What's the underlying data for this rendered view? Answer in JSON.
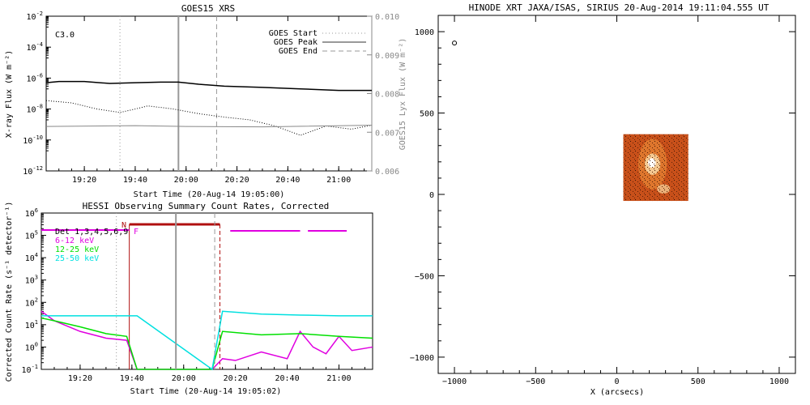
{
  "goes": {
    "title": "GOES15 XRS",
    "flare_class": "C3.0",
    "xlabel": "Start Time (20-Aug-14 19:05:00)",
    "ylabel_left": "X-ray Flux (W m⁻²)",
    "ylabel_right": "GOES15 Lyx Flux (W m⁻²)",
    "legend": [
      {
        "label": "GOES Start",
        "style": "dotted"
      },
      {
        "label": "GOES Peak",
        "style": "solid"
      },
      {
        "label": "GOES End",
        "style": "dashed"
      }
    ],
    "left_ticks": [
      {
        "exp": "-2",
        "v": -2
      },
      {
        "exp": "-4",
        "v": -4
      },
      {
        "exp": "-6",
        "v": -6
      },
      {
        "exp": "-8",
        "v": -8
      },
      {
        "exp": "-10",
        "v": -10
      },
      {
        "exp": "-12",
        "v": -12
      }
    ],
    "right_ticks": [
      "0.010",
      "0.009",
      "0.008",
      "0.007",
      "0.006"
    ],
    "x_ticks": [
      "19:20",
      "19:40",
      "20:00",
      "20:20",
      "20:40",
      "21:00"
    ]
  },
  "hessi": {
    "title": "HESSI Observing Summary Count Rates, Corrected",
    "xlabel": "Start Time (20-Aug-14 19:05:02)",
    "ylabel": "Corrected Count Rate (s⁻¹ detector⁻¹)",
    "legend": [
      {
        "label": "Det 1,3,4,5,6,9",
        "color": "#000000"
      },
      {
        "label": "6-12 keV",
        "color": "#e000e0"
      },
      {
        "label": "12-25 keV",
        "color": "#00e000"
      },
      {
        "label": "25-50 keV",
        "color": "#00e0e0"
      }
    ],
    "markers": {
      "night": "N",
      "flare": "F"
    },
    "y_ticks": [
      {
        "exp": "6",
        "v": 6
      },
      {
        "exp": "5",
        "v": 5
      },
      {
        "exp": "4",
        "v": 4
      },
      {
        "exp": "3",
        "v": 3
      },
      {
        "exp": "2",
        "v": 2
      },
      {
        "exp": "1",
        "v": 1
      },
      {
        "exp": "0",
        "v": 0
      },
      {
        "exp": "-1",
        "v": -1
      }
    ],
    "x_ticks": [
      "19:20",
      "19:40",
      "20:00",
      "20:20",
      "20:40",
      "21:00"
    ]
  },
  "hinode": {
    "title": "HINODE XRT JAXA/ISAS, SIRIUS 20-Aug-2014 19:11:04.555 UT",
    "xlabel": "X (arcsecs)",
    "x_ticks": [
      "−1000",
      "−500",
      "0",
      "500",
      "1000"
    ],
    "y_ticks": [
      "1000",
      "500",
      "0",
      "−500",
      "−1000"
    ],
    "image_colors": [
      "#c8501a",
      "#e07a30",
      "#f4c890",
      "#ffffff"
    ]
  },
  "chart_data": [
    {
      "type": "line",
      "title": "GOES15 XRS",
      "xlabel": "Start Time (20-Aug-14 19:05:00)",
      "ylabel": "X-ray Flux (W m^-2)",
      "y_scale": "log",
      "ylim": [
        1e-12,
        0.01
      ],
      "y2lim": [
        0.006,
        0.01
      ],
      "xlim": [
        "19:05",
        "21:13"
      ],
      "events": {
        "start": "19:34",
        "peak": "19:57",
        "end": "20:12"
      },
      "series": [
        {
          "name": "",
          "x": [
            "19:05",
            "19:10",
            "19:20",
            "19:30",
            "19:40",
            "19:50",
            "19:57",
            "20:05",
            "20:15",
            "20:30",
            "20:45",
            "21:00",
            "21:13"
          ],
          "values": [
            5e-07,
            6e-07,
            6e-07,
            4.5e-07,
            5e-07,
            5.5e-07,
            5.5e-07,
            4e-07,
            3e-07,
            2.5e-07,
            2e-07,
            1.6e-07,
            1.6e-07
          ]
        },
        {
          "name": "",
          "x": [
            "19:05",
            "19:15",
            "19:25",
            "19:34",
            "19:40",
            "19:45",
            "19:55",
            "20:05",
            "20:15",
            "20:25",
            "20:35",
            "20:45",
            "20:55",
            "21:05",
            "21:13"
          ],
          "values": [
            3.5e-08,
            2.5e-08,
            1e-08,
            6e-09,
            1e-08,
            1.6e-08,
            1e-08,
            5e-09,
            3e-09,
            2e-09,
            8e-10,
            2e-10,
            8e-10,
            5e-10,
            9e-10
          ]
        },
        {
          "name": "",
          "x": [
            "19:05",
            "19:40",
            "20:00",
            "20:30",
            "21:13"
          ],
          "values": [
            0.00715,
            0.00717,
            0.00715,
            0.00714,
            0.00718
          ]
        }
      ]
    },
    {
      "type": "line",
      "title": "HESSI Observing Summary Count Rates, Corrected",
      "xlabel": "Start Time (20-Aug-14 19:05:02)",
      "ylabel": "Corrected Count Rate (s^-1 detector^-1)",
      "y_scale": "log",
      "ylim": [
        0.1,
        1000000.0
      ],
      "xlim": [
        "19:05",
        "21:13"
      ],
      "series": [
        {
          "name": "6-12 keV",
          "x": [
            "19:05",
            "19:10",
            "19:20",
            "19:30",
            "19:38",
            "19:42",
            "20:11",
            "20:15",
            "20:20",
            "20:30",
            "20:40",
            "20:45",
            "20:50",
            "20:55",
            "21:00",
            "21:05",
            "21:13"
          ],
          "values": [
            40,
            15,
            5,
            2.5,
            2,
            0.1,
            0.1,
            0.3,
            0.25,
            0.6,
            0.3,
            5,
            1,
            0.5,
            3,
            0.7,
            1
          ]
        },
        {
          "name": "12-25 keV",
          "x": [
            "19:05",
            "19:10",
            "19:20",
            "19:30",
            "19:38",
            "19:42",
            "20:11",
            "20:15",
            "20:30",
            "20:45",
            "21:00",
            "21:13"
          ],
          "values": [
            20,
            15,
            8,
            4,
            3,
            0.1,
            0.1,
            5,
            3.5,
            4,
            3,
            2.5
          ]
        },
        {
          "name": "25-50 keV",
          "x": [
            "19:05",
            "19:20",
            "19:42",
            "20:11",
            "20:15",
            "20:30",
            "20:45",
            "21:00",
            "21:13"
          ],
          "values": [
            25,
            25,
            25,
            0.1,
            40,
            30,
            27,
            25,
            25
          ]
        }
      ]
    },
    {
      "type": "scatter",
      "title": "HINODE XRT JAXA/ISAS, SIRIUS 20-Aug-2014 19:11:04.555 UT",
      "xlabel": "X (arcsecs)",
      "xlim": [
        -1100,
        1100
      ],
      "ylim": [
        -1100,
        1100
      ],
      "image_extent": {
        "x": [
          40,
          440
        ],
        "y": [
          -40,
          370
        ]
      },
      "series": [
        {
          "name": "",
          "x": [
            -1000
          ],
          "y": [
            930
          ]
        }
      ]
    }
  ]
}
